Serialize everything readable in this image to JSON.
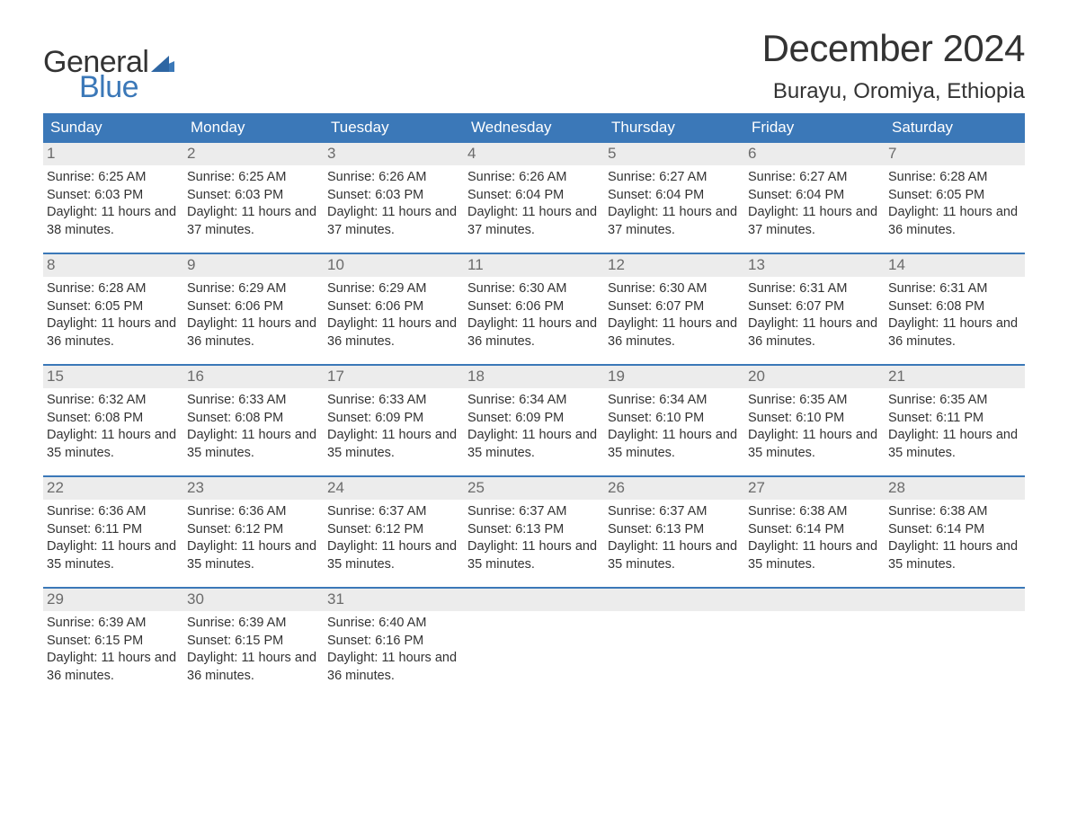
{
  "brand": {
    "word1": "General",
    "word2": "Blue",
    "word1_color": "#333333",
    "word2_color": "#3b78b8",
    "flag_color": "#3b78b8"
  },
  "title": {
    "month": "December 2024",
    "location": "Burayu, Oromiya, Ethiopia",
    "title_fontsize": 42,
    "location_fontsize": 24
  },
  "colors": {
    "header_bg": "#3b78b8",
    "header_text": "#ffffff",
    "daynum_bg": "#ececec",
    "daynum_text": "#6b6b6b",
    "body_text": "#333333",
    "week_divider": "#3b78b8",
    "page_bg": "#ffffff"
  },
  "weekdays": [
    "Sunday",
    "Monday",
    "Tuesday",
    "Wednesday",
    "Thursday",
    "Friday",
    "Saturday"
  ],
  "labels": {
    "sunrise": "Sunrise:",
    "sunset": "Sunset:",
    "daylight": "Daylight:"
  },
  "weeks": [
    [
      {
        "n": "1",
        "sunrise": "6:25 AM",
        "sunset": "6:03 PM",
        "daylight": "11 hours and 38 minutes."
      },
      {
        "n": "2",
        "sunrise": "6:25 AM",
        "sunset": "6:03 PM",
        "daylight": "11 hours and 37 minutes."
      },
      {
        "n": "3",
        "sunrise": "6:26 AM",
        "sunset": "6:03 PM",
        "daylight": "11 hours and 37 minutes."
      },
      {
        "n": "4",
        "sunrise": "6:26 AM",
        "sunset": "6:04 PM",
        "daylight": "11 hours and 37 minutes."
      },
      {
        "n": "5",
        "sunrise": "6:27 AM",
        "sunset": "6:04 PM",
        "daylight": "11 hours and 37 minutes."
      },
      {
        "n": "6",
        "sunrise": "6:27 AM",
        "sunset": "6:04 PM",
        "daylight": "11 hours and 37 minutes."
      },
      {
        "n": "7",
        "sunrise": "6:28 AM",
        "sunset": "6:05 PM",
        "daylight": "11 hours and 36 minutes."
      }
    ],
    [
      {
        "n": "8",
        "sunrise": "6:28 AM",
        "sunset": "6:05 PM",
        "daylight": "11 hours and 36 minutes."
      },
      {
        "n": "9",
        "sunrise": "6:29 AM",
        "sunset": "6:06 PM",
        "daylight": "11 hours and 36 minutes."
      },
      {
        "n": "10",
        "sunrise": "6:29 AM",
        "sunset": "6:06 PM",
        "daylight": "11 hours and 36 minutes."
      },
      {
        "n": "11",
        "sunrise": "6:30 AM",
        "sunset": "6:06 PM",
        "daylight": "11 hours and 36 minutes."
      },
      {
        "n": "12",
        "sunrise": "6:30 AM",
        "sunset": "6:07 PM",
        "daylight": "11 hours and 36 minutes."
      },
      {
        "n": "13",
        "sunrise": "6:31 AM",
        "sunset": "6:07 PM",
        "daylight": "11 hours and 36 minutes."
      },
      {
        "n": "14",
        "sunrise": "6:31 AM",
        "sunset": "6:08 PM",
        "daylight": "11 hours and 36 minutes."
      }
    ],
    [
      {
        "n": "15",
        "sunrise": "6:32 AM",
        "sunset": "6:08 PM",
        "daylight": "11 hours and 35 minutes."
      },
      {
        "n": "16",
        "sunrise": "6:33 AM",
        "sunset": "6:08 PM",
        "daylight": "11 hours and 35 minutes."
      },
      {
        "n": "17",
        "sunrise": "6:33 AM",
        "sunset": "6:09 PM",
        "daylight": "11 hours and 35 minutes."
      },
      {
        "n": "18",
        "sunrise": "6:34 AM",
        "sunset": "6:09 PM",
        "daylight": "11 hours and 35 minutes."
      },
      {
        "n": "19",
        "sunrise": "6:34 AM",
        "sunset": "6:10 PM",
        "daylight": "11 hours and 35 minutes."
      },
      {
        "n": "20",
        "sunrise": "6:35 AM",
        "sunset": "6:10 PM",
        "daylight": "11 hours and 35 minutes."
      },
      {
        "n": "21",
        "sunrise": "6:35 AM",
        "sunset": "6:11 PM",
        "daylight": "11 hours and 35 minutes."
      }
    ],
    [
      {
        "n": "22",
        "sunrise": "6:36 AM",
        "sunset": "6:11 PM",
        "daylight": "11 hours and 35 minutes."
      },
      {
        "n": "23",
        "sunrise": "6:36 AM",
        "sunset": "6:12 PM",
        "daylight": "11 hours and 35 minutes."
      },
      {
        "n": "24",
        "sunrise": "6:37 AM",
        "sunset": "6:12 PM",
        "daylight": "11 hours and 35 minutes."
      },
      {
        "n": "25",
        "sunrise": "6:37 AM",
        "sunset": "6:13 PM",
        "daylight": "11 hours and 35 minutes."
      },
      {
        "n": "26",
        "sunrise": "6:37 AM",
        "sunset": "6:13 PM",
        "daylight": "11 hours and 35 minutes."
      },
      {
        "n": "27",
        "sunrise": "6:38 AM",
        "sunset": "6:14 PM",
        "daylight": "11 hours and 35 minutes."
      },
      {
        "n": "28",
        "sunrise": "6:38 AM",
        "sunset": "6:14 PM",
        "daylight": "11 hours and 35 minutes."
      }
    ],
    [
      {
        "n": "29",
        "sunrise": "6:39 AM",
        "sunset": "6:15 PM",
        "daylight": "11 hours and 36 minutes."
      },
      {
        "n": "30",
        "sunrise": "6:39 AM",
        "sunset": "6:15 PM",
        "daylight": "11 hours and 36 minutes."
      },
      {
        "n": "31",
        "sunrise": "6:40 AM",
        "sunset": "6:16 PM",
        "daylight": "11 hours and 36 minutes."
      },
      null,
      null,
      null,
      null
    ]
  ]
}
